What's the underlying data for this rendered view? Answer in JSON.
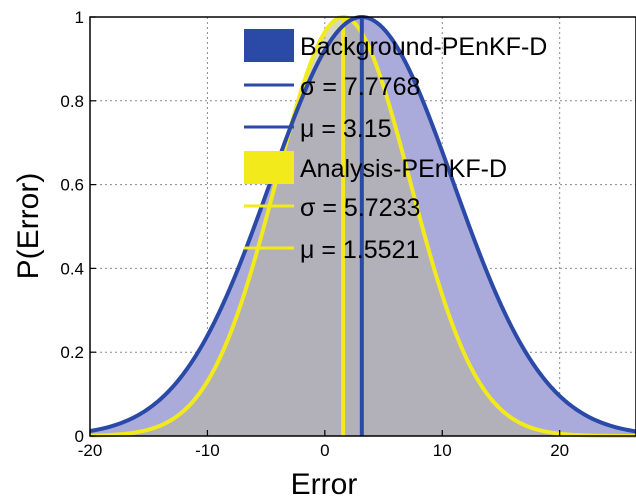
{
  "chart_data": {
    "type": "area",
    "xlabel": "Error",
    "ylabel": "P(Error)",
    "xlim": [
      -20,
      26.5
    ],
    "ylim": [
      0,
      1
    ],
    "x_ticks": [
      -20,
      -10,
      0,
      10,
      20
    ],
    "y_ticks": [
      0,
      0.2,
      0.4,
      0.6,
      0.8,
      1
    ],
    "x_tick_labels": [
      "-20",
      "-10",
      "0",
      "10",
      "20"
    ],
    "y_tick_labels": [
      "0",
      "0.2",
      "0.4",
      "0.6",
      "0.8",
      "1"
    ],
    "grid": true,
    "legend_position": "top-right",
    "series": [
      {
        "name": "Background-PEnKF-D",
        "kind": "gaussian",
        "sigma": 7.7768,
        "mu": 3.15,
        "sigma_label": "σ = 7.7768",
        "mu_label": "μ = 3.15",
        "color": "#2b4aa8",
        "fill": "#aaaadb"
      },
      {
        "name": "Analysis-PEnKF-D",
        "kind": "gaussian",
        "sigma": 5.7233,
        "mu": 1.5521,
        "sigma_label": "σ = 5.7233",
        "mu_label": "μ = 1.5521",
        "color": "#f2ea1a",
        "fill": "#b8b59a"
      }
    ]
  }
}
